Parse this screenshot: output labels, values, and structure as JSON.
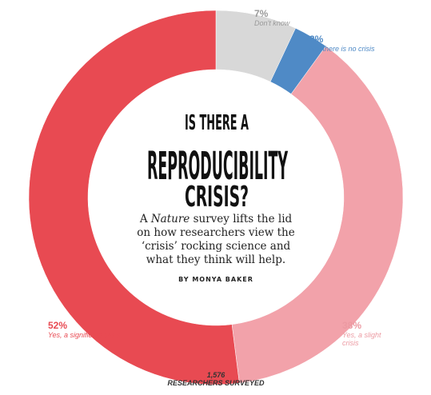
{
  "chart_data": {
    "type": "donut",
    "title_line1": "IS THERE A",
    "title_line2": "REPRODUCIBILITY",
    "title_line3": "CRISIS?",
    "description_start": "A",
    "description_emphasis": "Nature",
    "description": "survey lifts the lid on how researchers view the ‘crisis’ rocking science and what they think will help.",
    "byline": "BY MONYA BAKER",
    "categories": [
      "Don't know",
      "No, there is no crisis",
      "Yes, a slight crisis",
      "Yes, a significant crisis"
    ],
    "values": [
      7,
      3,
      38,
      52
    ],
    "value_labels": [
      "7%",
      "3%",
      "38%",
      "52%"
    ],
    "colors": [
      "#d8d8d8",
      "#4f8ac6",
      "#f2a2aa",
      "#e84a52"
    ],
    "label_colors": [
      "#9a9a9a",
      "#4f8ac6",
      "#ec9aa2",
      "#e84a52"
    ],
    "survey_size": "1,576",
    "survey_size_label": "RESEARCHERS SURVEYED"
  }
}
